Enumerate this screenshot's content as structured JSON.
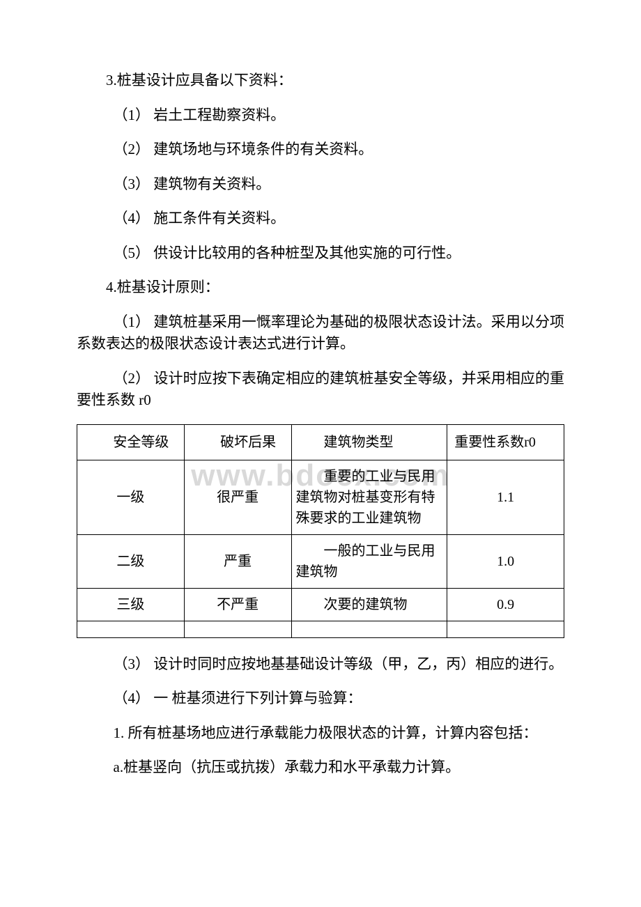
{
  "watermark": "www.bdocx.com",
  "section3": {
    "title": "3.桩基设计应具备以下资料：",
    "items": [
      "（1） 岩土工程勘察资料。",
      "（2） 建筑场地与环境条件的有关资料。",
      "（3） 建筑物有关资料。",
      "（4） 施工条件有关资料。",
      "（5） 供设计比较用的各种桩型及其他实施的可行性。"
    ]
  },
  "section4": {
    "title": "4.桩基设计原则：",
    "item1": "（1） 建筑桩基采用一慨率理论为基础的极限状态设计法。采用以分项系数表达的极限状态设计表达式进行计算。",
    "item2": "（2） 设计时应按下表确定相应的建筑桩基安全等级，并采用相应的重要性系数 r0",
    "item3": "（3） 设计时同时应按地基基础设计等级（甲，乙，丙）相应的进行。",
    "item4": "（4） 一 桩基须进行下列计算与验算：",
    "calc1": "1. 所有桩基场地应进行承载能力极限状态的计算，计算内容包括：",
    "calc1a": "a.桩基竖向（抗压或抗拨）承载力和水平承载力计算。"
  },
  "safety_table": {
    "headers": {
      "c1": "安全等级",
      "c2": "破坏后果",
      "c3": "建筑物类型",
      "c4": "重要性系数r0"
    },
    "rows": [
      {
        "c1": "一级",
        "c2": "很严重",
        "c3": "重要的工业与民用建筑物对桩基变形有特殊要求的工业建筑物",
        "c4": "1.1"
      },
      {
        "c1": "二级",
        "c2": "严重",
        "c3": "一般的工业与民用建筑物",
        "c4": "1.0"
      },
      {
        "c1": "三级",
        "c2": "不严重",
        "c3": "次要的建筑物",
        "c4": "0.9"
      }
    ],
    "styling": {
      "border_color": "#000000",
      "font_size": 20,
      "text_color": "#000000",
      "background_color": "#ffffff"
    }
  },
  "doc_style": {
    "page_background": "#ffffff",
    "text_color": "#000000",
    "body_font_size": 21,
    "watermark_color": "#d9d9d9",
    "watermark_font_size": 44
  }
}
